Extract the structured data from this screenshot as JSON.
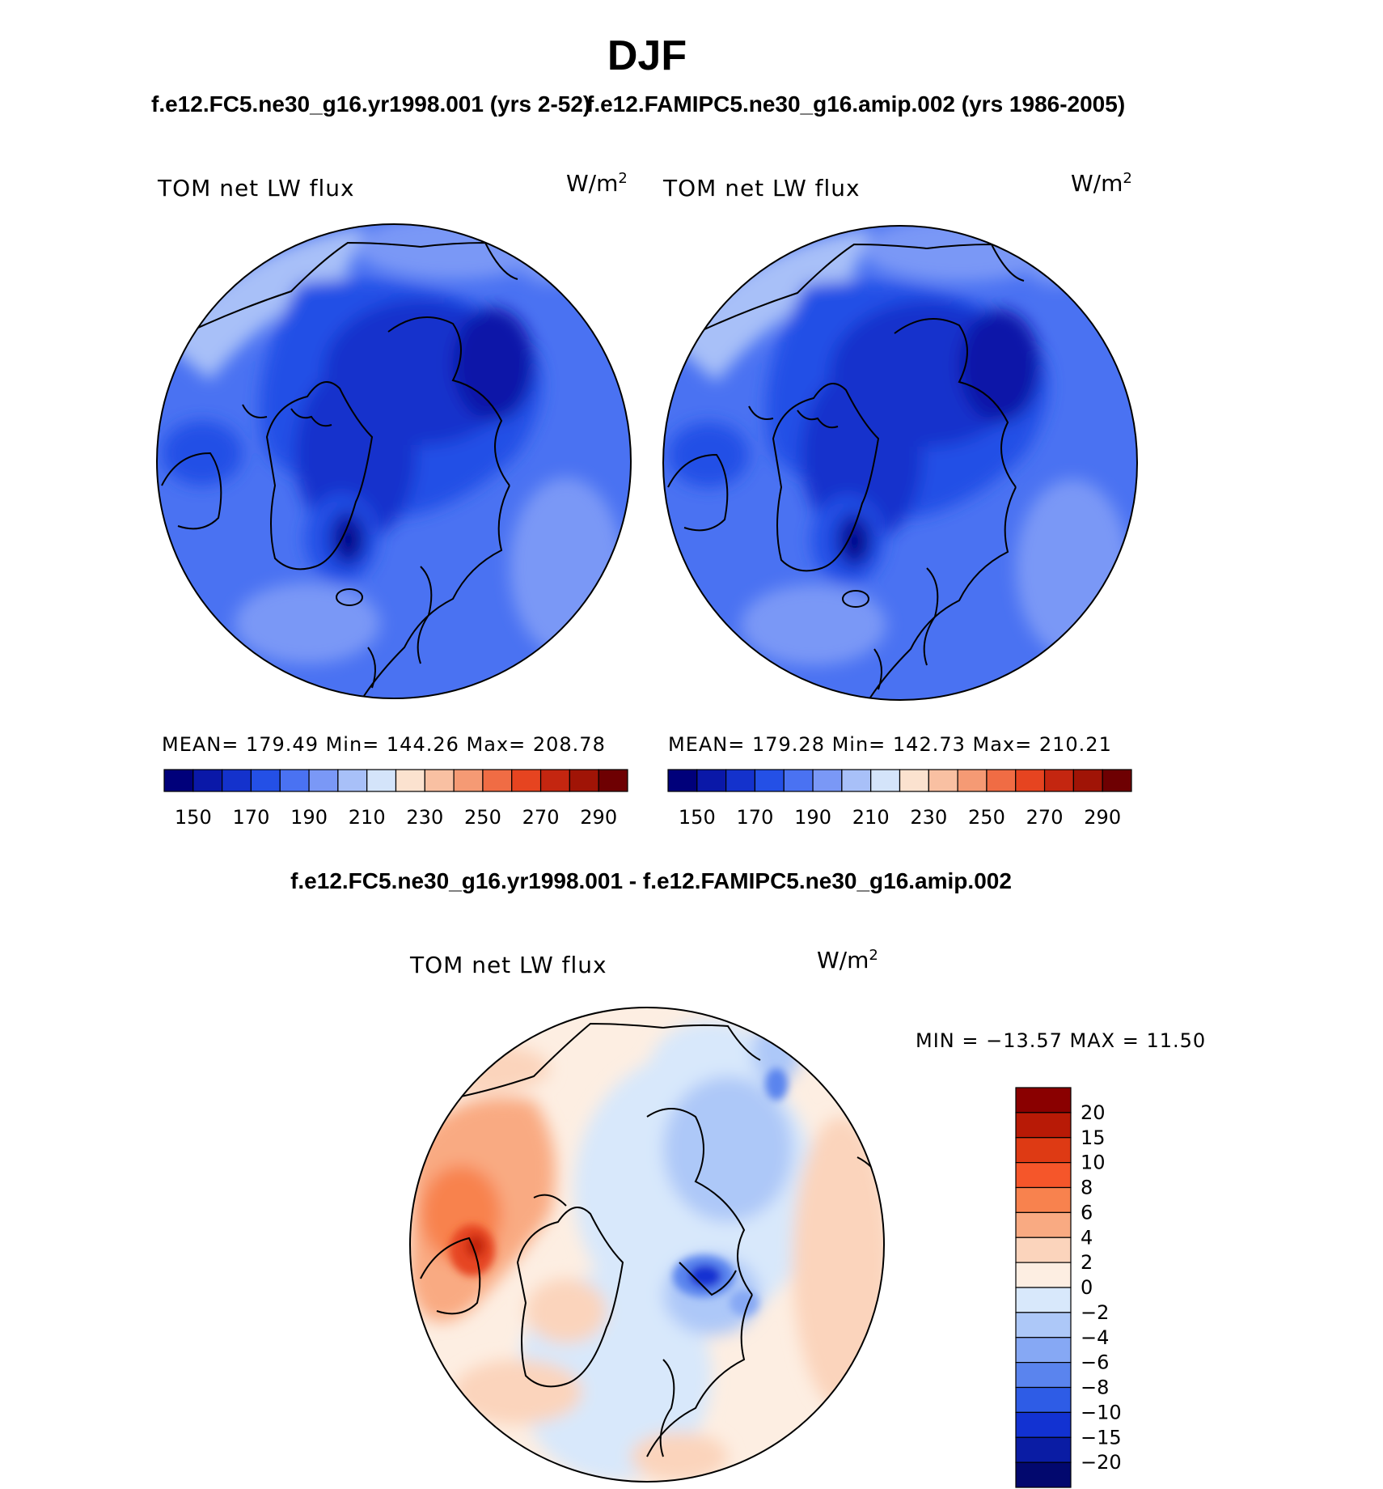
{
  "header": {
    "season": "DJF",
    "left_case": "f.e12.FC5.ne30_g16.yr1998.001 (yrs 2-52)",
    "right_case": "f.e12.FAMIPC5.ne30_g16.amip.002 (yrs 1986-2005)"
  },
  "panels": [
    {
      "variable": "TOM net LW flux",
      "units_base": "W/m",
      "units_sup": "2",
      "stats": "MEAN=  179.49   Min=  144.26   Max=  208.78"
    },
    {
      "variable": "TOM net LW flux",
      "units_base": "W/m",
      "units_sup": "2",
      "stats": "MEAN=  179.28   Min=  142.73   Max=  210.21"
    }
  ],
  "colorbar_abs": {
    "labels": [
      "150",
      "170",
      "190",
      "210",
      "230",
      "250",
      "270",
      "290"
    ],
    "colors": [
      "#00007a",
      "#0a18a8",
      "#1432cc",
      "#2450e6",
      "#4a72f2",
      "#7a98f6",
      "#a8c0f8",
      "#d4e4fa",
      "#fbe2cf",
      "#f9c0a2",
      "#f59a74",
      "#f06c44",
      "#e64420",
      "#c42610",
      "#a01406",
      "#6e0002"
    ]
  },
  "diff": {
    "title": "f.e12.FC5.ne30_g16.yr1998.001 - f.e12.FAMIPC5.ne30_g16.amip.002",
    "variable": "TOM net LW flux",
    "units_base": "W/m",
    "units_sup": "2",
    "stats": "MIN = −13.57 MAX =   11.50",
    "colorbar": {
      "labels": [
        "20",
        "15",
        "10",
        "8",
        "6",
        "4",
        "2",
        "0",
        "−2",
        "−4",
        "−6",
        "−8",
        "−10",
        "−15",
        "−20"
      ],
      "colors": [
        "#8a0000",
        "#b81a06",
        "#de3a14",
        "#f5562a",
        "#f8824e",
        "#f9aa82",
        "#fbd4bc",
        "#fdeee2",
        "#d8e8fb",
        "#adc8f8",
        "#86a8f4",
        "#5a84ee",
        "#2e5ce6",
        "#1232d2",
        "#0a1ca4",
        "#02086e"
      ]
    }
  }
}
